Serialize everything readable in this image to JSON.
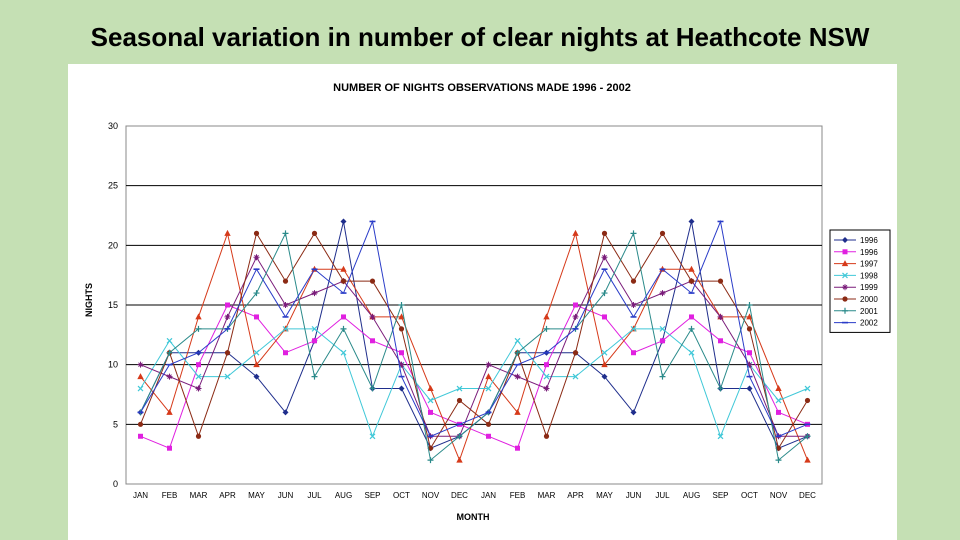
{
  "slide": {
    "title": "Seasonal variation in number of clear nights at Heathcote NSW"
  },
  "chart_data": {
    "type": "line",
    "title": "NUMBER OF NIGHTS OBSERVATIONS MADE 1996 - 2002",
    "xlabel": "MONTH",
    "ylabel": "NIGHTS",
    "ylim": [
      0,
      30
    ],
    "yticks": [
      0,
      5,
      10,
      15,
      20,
      25,
      30
    ],
    "grid": "horizontal",
    "legend_position": "right",
    "categories": [
      "JAN",
      "FEB",
      "MAR",
      "APR",
      "MAY",
      "JUN",
      "JUL",
      "AUG",
      "SEP",
      "OCT",
      "NOV",
      "DEC",
      "JAN",
      "FEB",
      "MAR",
      "APR",
      "MAY",
      "JUN",
      "JUL",
      "AUG",
      "SEP",
      "OCT",
      "NOV",
      "DEC"
    ],
    "series": [
      {
        "name": "1996",
        "color": "#1f2e8c",
        "marker": "diamond",
        "values": [
          6,
          11,
          11,
          11,
          9,
          6,
          12,
          22,
          8,
          8,
          3,
          4,
          6,
          11,
          11,
          11,
          9,
          6,
          12,
          22,
          8,
          8,
          3,
          4
        ]
      },
      {
        "name": "1996",
        "color": "#e020e0",
        "marker": "square",
        "values": [
          4,
          3,
          10,
          15,
          14,
          11,
          12,
          14,
          12,
          11,
          6,
          5,
          4,
          3,
          10,
          15,
          14,
          11,
          12,
          14,
          12,
          11,
          6,
          5
        ]
      },
      {
        "name": "1997",
        "color": "#d63a1a",
        "marker": "triangle",
        "values": [
          9,
          6,
          14,
          21,
          10,
          13,
          18,
          18,
          14,
          14,
          8,
          2,
          9,
          6,
          14,
          21,
          10,
          13,
          18,
          18,
          14,
          14,
          8,
          2
        ]
      },
      {
        "name": "1998",
        "color": "#40c8d8",
        "marker": "x",
        "values": [
          8,
          12,
          9,
          9,
          11,
          13,
          13,
          11,
          4,
          10,
          7,
          8,
          8,
          12,
          9,
          9,
          11,
          13,
          13,
          11,
          4,
          10,
          7,
          8
        ]
      },
      {
        "name": "1999",
        "color": "#7a1c7a",
        "marker": "star",
        "values": [
          10,
          9,
          8,
          14,
          19,
          15,
          16,
          17,
          14,
          10,
          4,
          4,
          10,
          9,
          8,
          14,
          19,
          15,
          16,
          17,
          14,
          10,
          4,
          4
        ]
      },
      {
        "name": "2000",
        "color": "#8b2a14",
        "marker": "circle",
        "values": [
          5,
          11,
          4,
          11,
          21,
          17,
          21,
          17,
          17,
          13,
          3,
          7,
          5,
          11,
          4,
          11,
          21,
          17,
          21,
          17,
          17,
          13,
          3,
          7
        ]
      },
      {
        "name": "2001",
        "color": "#2a8a8a",
        "marker": "plus",
        "values": [
          6,
          11,
          13,
          13,
          16,
          21,
          9,
          13,
          8,
          15,
          2,
          4,
          6,
          11,
          13,
          13,
          16,
          21,
          9,
          13,
          8,
          15,
          2,
          4
        ]
      },
      {
        "name": "2002",
        "color": "#2a3cc8",
        "marker": "dash",
        "values": [
          6,
          10,
          11,
          13,
          18,
          14,
          18,
          16,
          22,
          9,
          4,
          5,
          6,
          10,
          11,
          13,
          18,
          14,
          18,
          16,
          22,
          9,
          4,
          5
        ]
      }
    ],
    "legend_labels": [
      "1996",
      "1996",
      "1997",
      "1998",
      "1999",
      "2000",
      "2001",
      "2002"
    ]
  }
}
